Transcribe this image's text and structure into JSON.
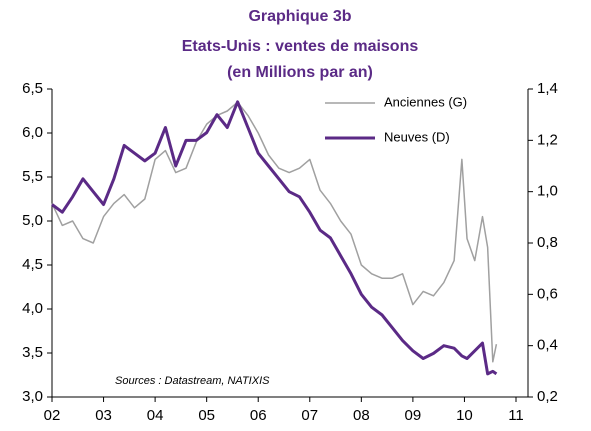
{
  "chart_data": {
    "type": "line",
    "title": [
      "Graphique 3b",
      "Etats-Unis : ventes de maisons",
      "(en Millions par an)"
    ],
    "annotation": "Sources : Datastream, NATIXIS",
    "x": [
      2002.0,
      2002.2,
      2002.4,
      2002.6,
      2002.8,
      2003.0,
      2003.2,
      2003.4,
      2003.6,
      2003.8,
      2004.0,
      2004.2,
      2004.4,
      2004.6,
      2004.8,
      2005.0,
      2005.2,
      2005.4,
      2005.6,
      2005.8,
      2006.0,
      2006.2,
      2006.4,
      2006.6,
      2006.8,
      2007.0,
      2007.2,
      2007.4,
      2007.6,
      2007.8,
      2008.0,
      2008.2,
      2008.4,
      2008.6,
      2008.8,
      2009.0,
      2009.2,
      2009.4,
      2009.6,
      2009.8,
      2009.95,
      2010.05,
      2010.2,
      2010.35,
      2010.45,
      2010.55,
      2010.62
    ],
    "series": [
      {
        "name": "Anciennes (G)",
        "color": "#a0a0a0",
        "axis": "y",
        "values": [
          5.2,
          4.95,
          5.0,
          4.8,
          4.75,
          5.05,
          5.2,
          5.3,
          5.15,
          5.25,
          5.7,
          5.8,
          5.55,
          5.6,
          5.9,
          6.1,
          6.2,
          6.25,
          6.35,
          6.2,
          6.0,
          5.75,
          5.6,
          5.55,
          5.6,
          5.7,
          5.35,
          5.2,
          5.0,
          4.85,
          4.5,
          4.4,
          4.35,
          4.35,
          4.4,
          4.05,
          4.2,
          4.15,
          4.3,
          4.55,
          5.7,
          4.8,
          4.55,
          5.05,
          4.7,
          3.4,
          3.6
        ]
      },
      {
        "name": "Neuves (D)",
        "color": "#5b2a86",
        "axis": "y2",
        "values": [
          0.95,
          0.92,
          0.98,
          1.05,
          1.0,
          0.95,
          1.05,
          1.18,
          1.15,
          1.12,
          1.15,
          1.25,
          1.1,
          1.2,
          1.2,
          1.23,
          1.3,
          1.25,
          1.35,
          1.25,
          1.15,
          1.1,
          1.05,
          1.0,
          0.98,
          0.92,
          0.85,
          0.82,
          0.75,
          0.68,
          0.6,
          0.55,
          0.52,
          0.47,
          0.42,
          0.38,
          0.35,
          0.37,
          0.4,
          0.39,
          0.36,
          0.35,
          0.38,
          0.41,
          0.29,
          0.3,
          0.29
        ]
      }
    ],
    "xlim": [
      2002,
      2011
    ],
    "xticks": [
      {
        "value": 2002,
        "label": "02"
      },
      {
        "value": 2003,
        "label": "03"
      },
      {
        "value": 2004,
        "label": "04"
      },
      {
        "value": 2005,
        "label": "05"
      },
      {
        "value": 2006,
        "label": "06"
      },
      {
        "value": 2007,
        "label": "07"
      },
      {
        "value": 2008,
        "label": "08"
      },
      {
        "value": 2009,
        "label": "09"
      },
      {
        "value": 2010,
        "label": "10"
      },
      {
        "value": 2011,
        "label": "11"
      }
    ],
    "ylim": [
      3.0,
      6.5
    ],
    "yticks": [
      {
        "value": 3.0,
        "label": "3,0"
      },
      {
        "value": 3.5,
        "label": "3,5"
      },
      {
        "value": 4.0,
        "label": "4,0"
      },
      {
        "value": 4.5,
        "label": "4,5"
      },
      {
        "value": 5.0,
        "label": "5,0"
      },
      {
        "value": 5.5,
        "label": "5,5"
      },
      {
        "value": 6.0,
        "label": "6,0"
      },
      {
        "value": 6.5,
        "label": "6,5"
      }
    ],
    "y2lim": [
      0.2,
      1.4
    ],
    "y2ticks": [
      {
        "value": 0.2,
        "label": "0,2"
      },
      {
        "value": 0.4,
        "label": "0,4"
      },
      {
        "value": 0.6,
        "label": "0,6"
      },
      {
        "value": 0.8,
        "label": "0,8"
      },
      {
        "value": 1.0,
        "label": "1,0"
      },
      {
        "value": 1.2,
        "label": "1,2"
      },
      {
        "value": 1.4,
        "label": "1,4"
      }
    ]
  }
}
